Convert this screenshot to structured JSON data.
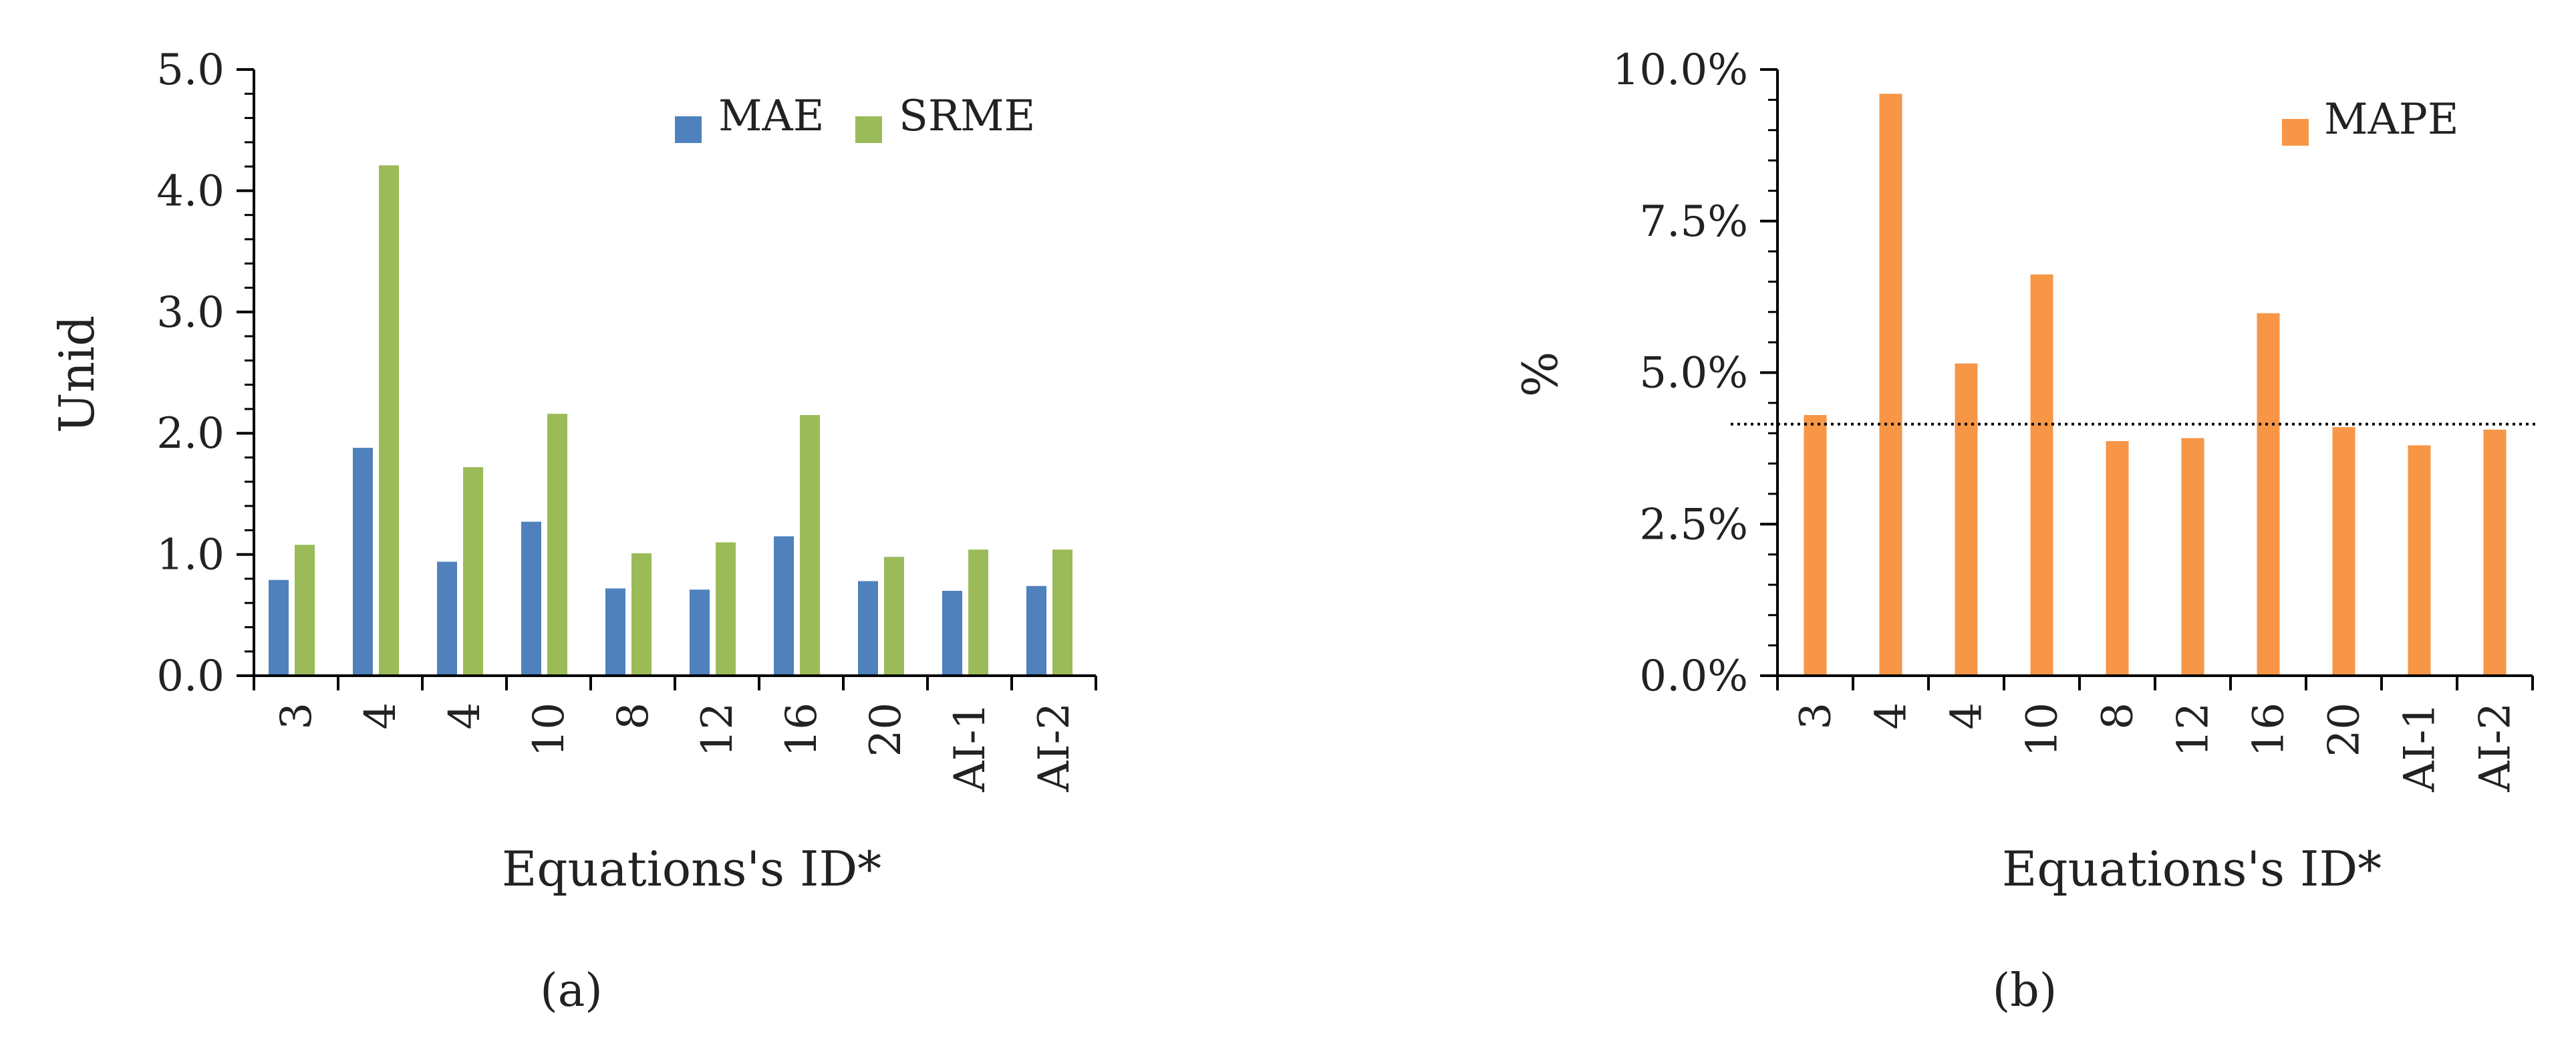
{
  "chart_data": [
    {
      "type": "bar",
      "panel_label": "(a)",
      "categories": [
        "3",
        "4",
        "4",
        "10",
        "8",
        "12",
        "16",
        "20",
        "AI-1",
        "AI-2"
      ],
      "series": [
        {
          "name": "MAE",
          "color": "#4f81bd",
          "values": [
            0.79,
            1.88,
            0.94,
            1.27,
            0.72,
            0.71,
            1.15,
            0.78,
            0.7,
            0.74
          ]
        },
        {
          "name": "SRME",
          "color": "#9bbb59",
          "values": [
            1.08,
            4.21,
            1.72,
            2.16,
            1.01,
            1.1,
            2.15,
            0.98,
            1.04,
            1.04
          ]
        }
      ],
      "xlabel": "Equations's ID*",
      "ylabel": "Unid",
      "ylim": [
        0,
        5
      ],
      "yticks": [
        "0.0",
        "1.0",
        "2.0",
        "3.0",
        "4.0",
        "5.0"
      ],
      "grid": false,
      "legend_position": "top-right"
    },
    {
      "type": "bar",
      "panel_label": "(b)",
      "categories": [
        "3",
        "4",
        "4",
        "10",
        "8",
        "12",
        "16",
        "20",
        "AI-1",
        "AI-2"
      ],
      "series": [
        {
          "name": "MAPE",
          "color": "#f79646",
          "values": [
            4.3,
            9.6,
            5.15,
            6.62,
            3.87,
            3.92,
            5.98,
            4.1,
            3.8,
            4.06
          ]
        }
      ],
      "reference_line": 4.15,
      "xlabel": "Equations's ID*",
      "ylabel": "%",
      "ylim": [
        0,
        10
      ],
      "yticks": [
        "0.0%",
        "2.5%",
        "5.0%",
        "7.5%",
        "10.0%"
      ],
      "grid": false,
      "legend_position": "top-right"
    }
  ]
}
